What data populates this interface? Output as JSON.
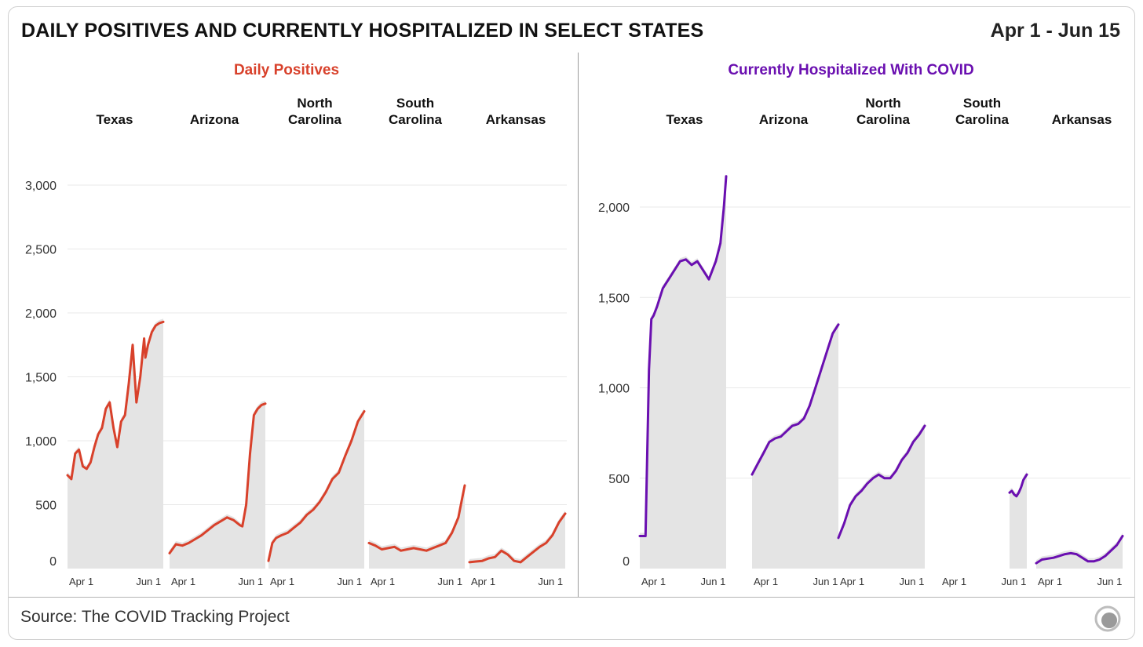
{
  "header": {
    "title": "DAILY POSITIVES AND CURRENTLY HOSPITALIZED IN SELECT STATES",
    "date_range": "Apr 1 - Jun 15"
  },
  "footer": {
    "source": "Source: The COVID Tracking Project",
    "logo_icon": "covid-tracking-project-logo-icon"
  },
  "colors": {
    "positives": "#d8412b",
    "hospitalized": "#6a0fb0",
    "bars": "#e4e4e4",
    "grid": "#e9e9e9"
  },
  "chart_data": [
    {
      "type": "line",
      "title": "Daily Positives",
      "ylim": [
        0,
        3000
      ],
      "yticks": [
        0,
        500,
        1000,
        1500,
        2000,
        2500,
        3000
      ],
      "ytick_labels": [
        "0",
        "500",
        "1,000",
        "1,500",
        "2,000",
        "2,500",
        "3,000"
      ],
      "xtick_labels": [
        "Apr 1",
        "Jun 1"
      ],
      "grid": true,
      "series": [
        {
          "state_lines": [
            "Texas"
          ],
          "x_days": [
            0,
            3,
            6,
            9,
            12,
            15,
            18,
            21,
            24,
            27,
            30,
            33,
            36,
            39,
            42,
            45,
            48,
            51,
            54,
            57,
            60,
            61,
            63,
            66,
            69,
            72,
            75
          ],
          "values": [
            730,
            700,
            900,
            930,
            800,
            780,
            830,
            950,
            1050,
            1100,
            1250,
            1300,
            1100,
            950,
            1150,
            1200,
            1450,
            1750,
            1300,
            1500,
            1800,
            1650,
            1750,
            1850,
            1900,
            1920,
            1930
          ]
        },
        {
          "state_lines": [
            "Arizona"
          ],
          "x_days": [
            0,
            5,
            10,
            15,
            20,
            25,
            30,
            35,
            40,
            45,
            50,
            55,
            57,
            60,
            63,
            66,
            69,
            72,
            75
          ],
          "values": [
            120,
            190,
            180,
            200,
            230,
            260,
            300,
            340,
            370,
            400,
            380,
            340,
            330,
            500,
            900,
            1200,
            1250,
            1280,
            1290
          ]
        },
        {
          "state_lines": [
            "North",
            "Carolina"
          ],
          "x_days": [
            0,
            3,
            6,
            10,
            15,
            20,
            25,
            30,
            35,
            40,
            45,
            50,
            55,
            60,
            65,
            70,
            75
          ],
          "values": [
            60,
            200,
            240,
            260,
            280,
            320,
            360,
            420,
            460,
            520,
            600,
            700,
            750,
            880,
            1000,
            1150,
            1230
          ]
        },
        {
          "state_lines": [
            "South",
            "Carolina"
          ],
          "x_days": [
            0,
            5,
            10,
            15,
            20,
            25,
            30,
            35,
            40,
            45,
            50,
            55,
            60,
            65,
            70,
            73,
            75
          ],
          "values": [
            200,
            180,
            150,
            160,
            170,
            140,
            150,
            160,
            150,
            140,
            160,
            180,
            200,
            280,
            400,
            550,
            650
          ]
        },
        {
          "state_lines": [
            "Arkansas"
          ],
          "x_days": [
            0,
            5,
            10,
            15,
            20,
            25,
            30,
            35,
            40,
            45,
            50,
            55,
            60,
            65,
            70,
            75
          ],
          "values": [
            50,
            55,
            60,
            80,
            90,
            140,
            110,
            60,
            50,
            90,
            130,
            170,
            200,
            260,
            360,
            430
          ]
        }
      ]
    },
    {
      "type": "line",
      "title": "Currently Hospitalized With COVID",
      "ylim": [
        0,
        2000
      ],
      "yticks": [
        0,
        500,
        1000,
        1500,
        2000
      ],
      "ytick_labels": [
        "0",
        "500",
        "1,000",
        "1,500",
        "2,000"
      ],
      "xtick_labels": [
        "Apr 1",
        "Jun 1"
      ],
      "grid": true,
      "series": [
        {
          "state_lines": [
            "Texas"
          ],
          "x_days": [
            0,
            3,
            5,
            8,
            10,
            12,
            15,
            20,
            25,
            30,
            35,
            40,
            45,
            50,
            55,
            60,
            63,
            66,
            70,
            73,
            75
          ],
          "values": [
            180,
            180,
            180,
            1100,
            1380,
            1400,
            1450,
            1550,
            1600,
            1650,
            1700,
            1710,
            1680,
            1700,
            1650,
            1600,
            1650,
            1700,
            1800,
            2000,
            2170
          ]
        },
        {
          "state_lines": [
            "Arizona"
          ],
          "x_days": [
            0,
            5,
            10,
            15,
            20,
            25,
            30,
            35,
            40,
            45,
            50,
            55,
            60,
            65,
            70,
            75
          ],
          "values": [
            520,
            580,
            640,
            700,
            720,
            730,
            760,
            790,
            800,
            830,
            900,
            1000,
            1100,
            1200,
            1300,
            1350
          ]
        },
        {
          "state_lines": [
            "North",
            "Carolina"
          ],
          "x_days": [
            0,
            5,
            10,
            15,
            20,
            25,
            30,
            35,
            40,
            45,
            50,
            55,
            60,
            65,
            70,
            75
          ],
          "values": [
            170,
            250,
            350,
            400,
            430,
            470,
            500,
            520,
            500,
            500,
            540,
            600,
            640,
            700,
            740,
            790
          ]
        },
        {
          "state_lines": [
            "South",
            "Carolina"
          ],
          "x_days": [
            60,
            62,
            64,
            66,
            68,
            70,
            72,
            75
          ],
          "values": [
            420,
            430,
            410,
            400,
            420,
            450,
            490,
            520
          ]
        },
        {
          "state_lines": [
            "Arkansas"
          ],
          "x_days": [
            0,
            5,
            10,
            15,
            20,
            25,
            30,
            35,
            40,
            45,
            50,
            55,
            60,
            65,
            70,
            75
          ],
          "values": [
            30,
            50,
            55,
            60,
            70,
            80,
            85,
            80,
            60,
            40,
            40,
            50,
            70,
            100,
            130,
            180
          ]
        }
      ]
    }
  ]
}
